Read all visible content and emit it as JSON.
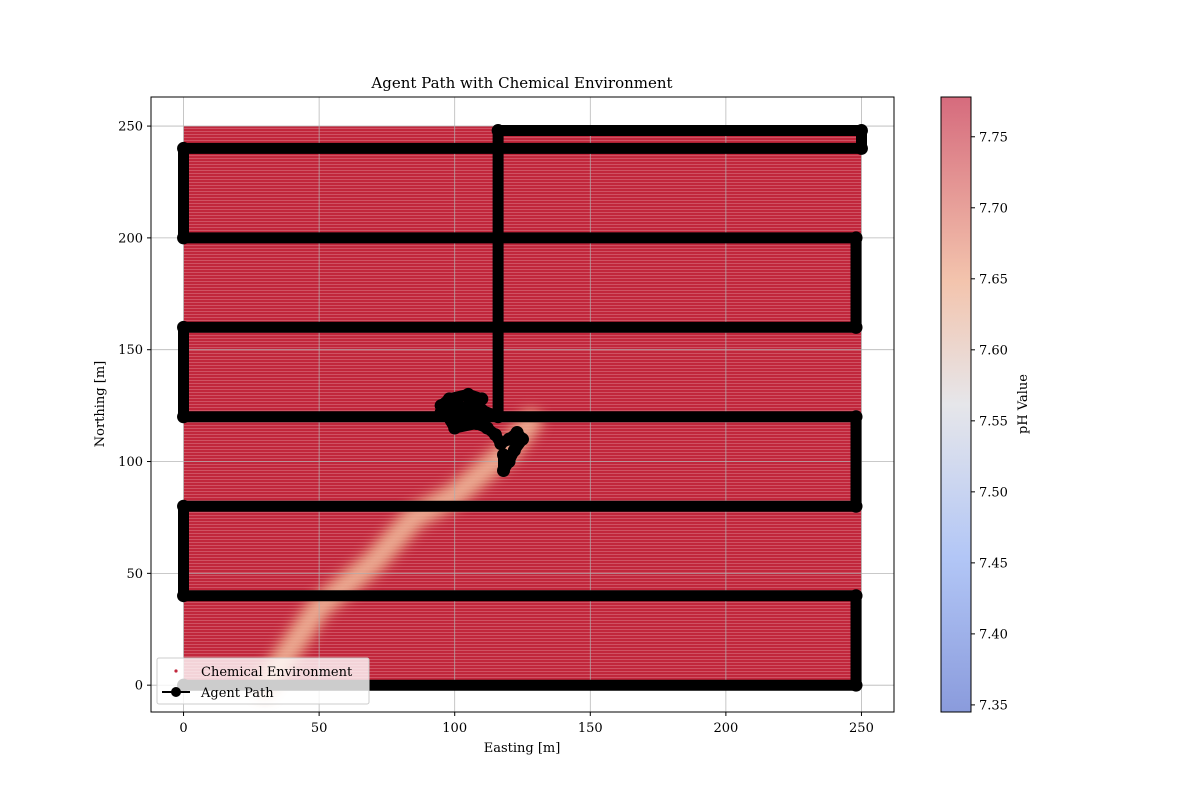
{
  "chart_data": {
    "type": "scatter",
    "title": "Agent Path with Chemical Environment",
    "xlabel": "Easting [m]",
    "ylabel": "Northing [m]",
    "xlim": [
      -12,
      262
    ],
    "ylim": [
      -12,
      263
    ],
    "xticks": [
      0,
      50,
      100,
      150,
      200,
      250
    ],
    "yticks": [
      0,
      50,
      100,
      150,
      200,
      250
    ],
    "grid": true,
    "legend": {
      "placement": "lower-left",
      "entries": [
        "Chemical Environment",
        "Agent Path"
      ]
    },
    "colorbar": {
      "label": "pH Value",
      "range": [
        7.345,
        7.778
      ],
      "ticks": [
        7.35,
        7.4,
        7.45,
        7.5,
        7.55,
        7.6,
        7.65,
        7.7,
        7.75
      ],
      "colormap": "coolwarm"
    },
    "series": [
      {
        "name": "Chemical Environment",
        "kind": "scatter-field",
        "x_range": [
          0,
          250
        ],
        "y_range": [
          0,
          250
        ],
        "background_value": 7.77,
        "plume": {
          "points": [
            [
              30,
              0
            ],
            [
              50,
              35
            ],
            [
              70,
              55
            ],
            [
              85,
              75
            ],
            [
              100,
              85
            ],
            [
              110,
              95
            ],
            [
              120,
              105
            ],
            [
              128,
              118
            ]
          ],
          "value_min": 7.64
        },
        "color": "#c1273c"
      },
      {
        "name": "Agent Path",
        "kind": "line-markers",
        "color": "#000000",
        "points": [
          [
            0,
            0
          ],
          [
            248,
            0
          ],
          [
            248,
            40
          ],
          [
            0,
            40
          ],
          [
            0,
            80
          ],
          [
            248,
            80
          ],
          [
            248,
            120
          ],
          [
            0,
            120
          ],
          [
            0,
            160
          ],
          [
            248,
            160
          ],
          [
            248,
            200
          ],
          [
            0,
            200
          ],
          [
            0,
            240
          ],
          [
            250,
            240
          ],
          [
            250,
            248
          ],
          [
            116,
            248
          ],
          [
            116,
            120
          ],
          [
            110,
            123
          ],
          [
            100,
            125
          ],
          [
            95,
            122
          ],
          [
            100,
            118
          ],
          [
            105,
            125
          ],
          [
            110,
            128
          ],
          [
            105,
            130
          ],
          [
            98,
            128
          ],
          [
            95,
            125
          ],
          [
            100,
            115
          ],
          [
            108,
            117
          ],
          [
            112,
            115
          ],
          [
            115,
            112
          ],
          [
            117,
            108
          ],
          [
            120,
            110
          ],
          [
            123,
            113
          ],
          [
            125,
            110
          ],
          [
            122,
            105
          ],
          [
            120,
            100
          ],
          [
            118,
            103
          ],
          [
            118,
            96
          ],
          [
            120,
            100
          ]
        ]
      }
    ]
  }
}
